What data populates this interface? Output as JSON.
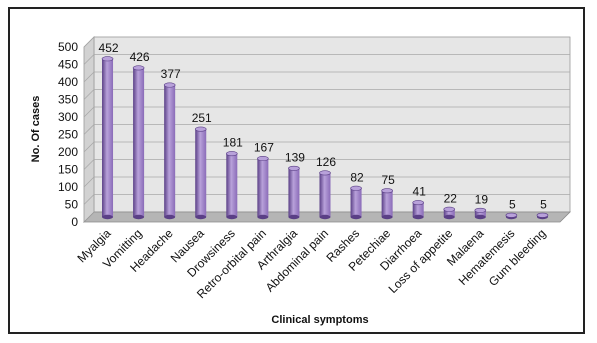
{
  "chart_data": {
    "type": "bar",
    "title": "",
    "xlabel": "Clinical symptoms",
    "ylabel": "No. Of cases",
    "ylim": [
      0,
      500
    ],
    "yticks": [
      0,
      50,
      100,
      150,
      200,
      250,
      300,
      350,
      400,
      450,
      500
    ],
    "grid": true,
    "legend": "none",
    "categories": [
      "Myalgia",
      "Vomitting",
      "Headache",
      "Nausea",
      "Drowsiness",
      "Retro-orbital pain",
      "Arthralgia",
      "Abdominal pain",
      "Rashes",
      "Petechiae",
      "Diarrhoea",
      "Loss of appetite",
      "Malaena",
      "Hematemesis",
      "Gum bleeding"
    ],
    "values": [
      452,
      426,
      377,
      251,
      181,
      167,
      139,
      126,
      82,
      75,
      41,
      22,
      19,
      5,
      5
    ],
    "colors": {
      "bar_main": "#8a6bb8",
      "bar_light": "#b8a1da",
      "bar_dark": "#5a3f86",
      "wall": "#e6e6e6",
      "floor": "#b5b5b5",
      "grid": "#a8a8a8"
    }
  }
}
